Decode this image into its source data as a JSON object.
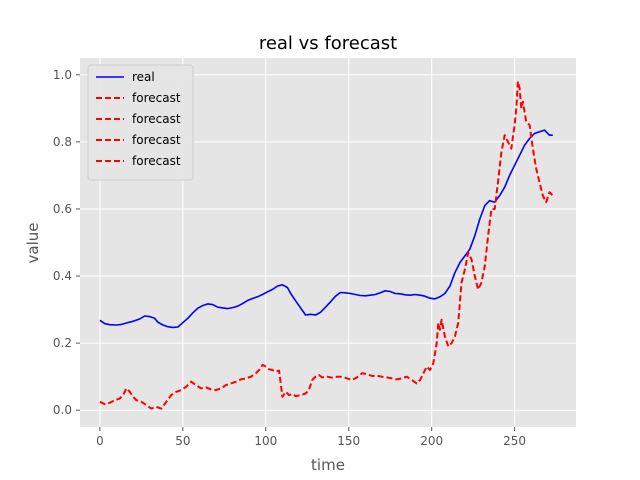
{
  "chart_data": {
    "type": "line",
    "title": "real vs forecast",
    "xlabel": "time",
    "ylabel": "value",
    "xlim": [
      -12,
      287
    ],
    "ylim": [
      -0.05,
      1.05
    ],
    "xticks": [
      0,
      50,
      100,
      150,
      200,
      250
    ],
    "yticks": [
      0.0,
      0.2,
      0.4,
      0.6,
      0.8,
      1.0
    ],
    "xtick_labels": [
      "0",
      "50",
      "100",
      "150",
      "200",
      "250"
    ],
    "ytick_labels": [
      "0.0",
      "0.2",
      "0.4",
      "0.6",
      "0.8",
      "1.0"
    ],
    "grid": true,
    "style": "ggplot",
    "legend": {
      "placement": "top-left",
      "entries": [
        "real",
        "forecast",
        "forecast",
        "forecast",
        "forecast"
      ]
    },
    "series": [
      {
        "name": "real",
        "color": "#0000ff",
        "linestyle": "solid",
        "x": [
          0,
          3,
          6,
          10,
          13,
          16,
          20,
          24,
          27,
          30,
          33,
          35,
          38,
          41,
          44,
          47,
          50,
          53,
          56,
          59,
          62,
          65,
          68,
          71,
          74,
          77,
          80,
          83,
          86,
          89,
          92,
          95,
          98,
          101,
          104,
          107,
          110,
          113,
          115,
          118,
          121,
          124,
          127,
          130,
          133,
          136,
          139,
          142,
          145,
          148,
          151,
          154,
          157,
          160,
          163,
          166,
          169,
          172,
          175,
          178,
          181,
          184,
          187,
          190,
          193,
          196,
          199,
          202,
          205,
          208,
          211,
          214,
          217,
          220,
          223,
          226,
          229,
          232,
          235,
          238,
          241,
          244,
          247,
          250,
          253,
          256,
          259,
          262,
          265,
          268,
          271,
          273
        ],
        "y": [
          0.268,
          0.258,
          0.255,
          0.254,
          0.256,
          0.26,
          0.265,
          0.272,
          0.281,
          0.279,
          0.274,
          0.262,
          0.254,
          0.249,
          0.247,
          0.248,
          0.261,
          0.274,
          0.29,
          0.304,
          0.312,
          0.317,
          0.315,
          0.307,
          0.305,
          0.303,
          0.306,
          0.31,
          0.318,
          0.327,
          0.333,
          0.338,
          0.345,
          0.353,
          0.36,
          0.37,
          0.374,
          0.366,
          0.348,
          0.326,
          0.305,
          0.284,
          0.286,
          0.284,
          0.292,
          0.307,
          0.323,
          0.34,
          0.351,
          0.35,
          0.348,
          0.345,
          0.342,
          0.341,
          0.343,
          0.345,
          0.35,
          0.356,
          0.354,
          0.348,
          0.347,
          0.344,
          0.343,
          0.345,
          0.343,
          0.34,
          0.334,
          0.332,
          0.338,
          0.348,
          0.37,
          0.41,
          0.44,
          0.46,
          0.48,
          0.52,
          0.57,
          0.61,
          0.625,
          0.62,
          0.64,
          0.665,
          0.7,
          0.73,
          0.76,
          0.79,
          0.81,
          0.825,
          0.83,
          0.835,
          0.82,
          0.82
        ]
      },
      {
        "name": "forecast",
        "color": "#ff0000",
        "linestyle": "dashed",
        "x": [
          0,
          3,
          6,
          9,
          12,
          14,
          16,
          18,
          20,
          22,
          25,
          28,
          31,
          34,
          37,
          40,
          43,
          46,
          49,
          52,
          55,
          58,
          61,
          64,
          67,
          70,
          73,
          76,
          79,
          82,
          85,
          88,
          91,
          94,
          96,
          98,
          100,
          102,
          104,
          106,
          108,
          110,
          112,
          114,
          116,
          118,
          121,
          124,
          126,
          128,
          130,
          132,
          134,
          137,
          140,
          143,
          146,
          149,
          152,
          155,
          158,
          161,
          164,
          167,
          170,
          173,
          176,
          179,
          182,
          185,
          188,
          191,
          193,
          195,
          197,
          199,
          201,
          203,
          204,
          205,
          206,
          208,
          210,
          212,
          214,
          216,
          218,
          220,
          222,
          224,
          226,
          228,
          230,
          232,
          234,
          236,
          238,
          240,
          242,
          244,
          246,
          248,
          250,
          251,
          252,
          253,
          254,
          255,
          257,
          259,
          261,
          263,
          265,
          267,
          269,
          271,
          273
        ],
        "y": [
          0.025,
          0.018,
          0.022,
          0.03,
          0.035,
          0.045,
          0.065,
          0.055,
          0.04,
          0.03,
          0.025,
          0.015,
          0.005,
          0.01,
          0.005,
          0.025,
          0.045,
          0.055,
          0.06,
          0.07,
          0.085,
          0.075,
          0.065,
          0.068,
          0.062,
          0.06,
          0.065,
          0.075,
          0.08,
          0.085,
          0.092,
          0.095,
          0.1,
          0.11,
          0.12,
          0.135,
          0.13,
          0.122,
          0.12,
          0.115,
          0.118,
          0.04,
          0.055,
          0.045,
          0.048,
          0.042,
          0.045,
          0.05,
          0.06,
          0.09,
          0.1,
          0.105,
          0.098,
          0.1,
          0.097,
          0.1,
          0.1,
          0.095,
          0.09,
          0.098,
          0.11,
          0.108,
          0.102,
          0.103,
          0.1,
          0.098,
          0.095,
          0.092,
          0.095,
          0.1,
          0.09,
          0.08,
          0.09,
          0.11,
          0.13,
          0.12,
          0.14,
          0.2,
          0.26,
          0.24,
          0.27,
          0.22,
          0.19,
          0.2,
          0.22,
          0.26,
          0.38,
          0.42,
          0.47,
          0.45,
          0.4,
          0.36,
          0.38,
          0.43,
          0.52,
          0.6,
          0.6,
          0.68,
          0.77,
          0.82,
          0.8,
          0.78,
          0.85,
          0.9,
          0.98,
          0.96,
          0.9,
          0.92,
          0.86,
          0.85,
          0.78,
          0.72,
          0.68,
          0.64,
          0.62,
          0.65,
          0.64
        ]
      },
      {
        "name": "forecast",
        "color": "#ff0000",
        "linestyle": "dashed",
        "x": [],
        "y": []
      },
      {
        "name": "forecast",
        "color": "#ff0000",
        "linestyle": "dashed",
        "x": [],
        "y": []
      },
      {
        "name": "forecast",
        "color": "#ff0000",
        "linestyle": "dashed",
        "x": [],
        "y": []
      }
    ]
  }
}
